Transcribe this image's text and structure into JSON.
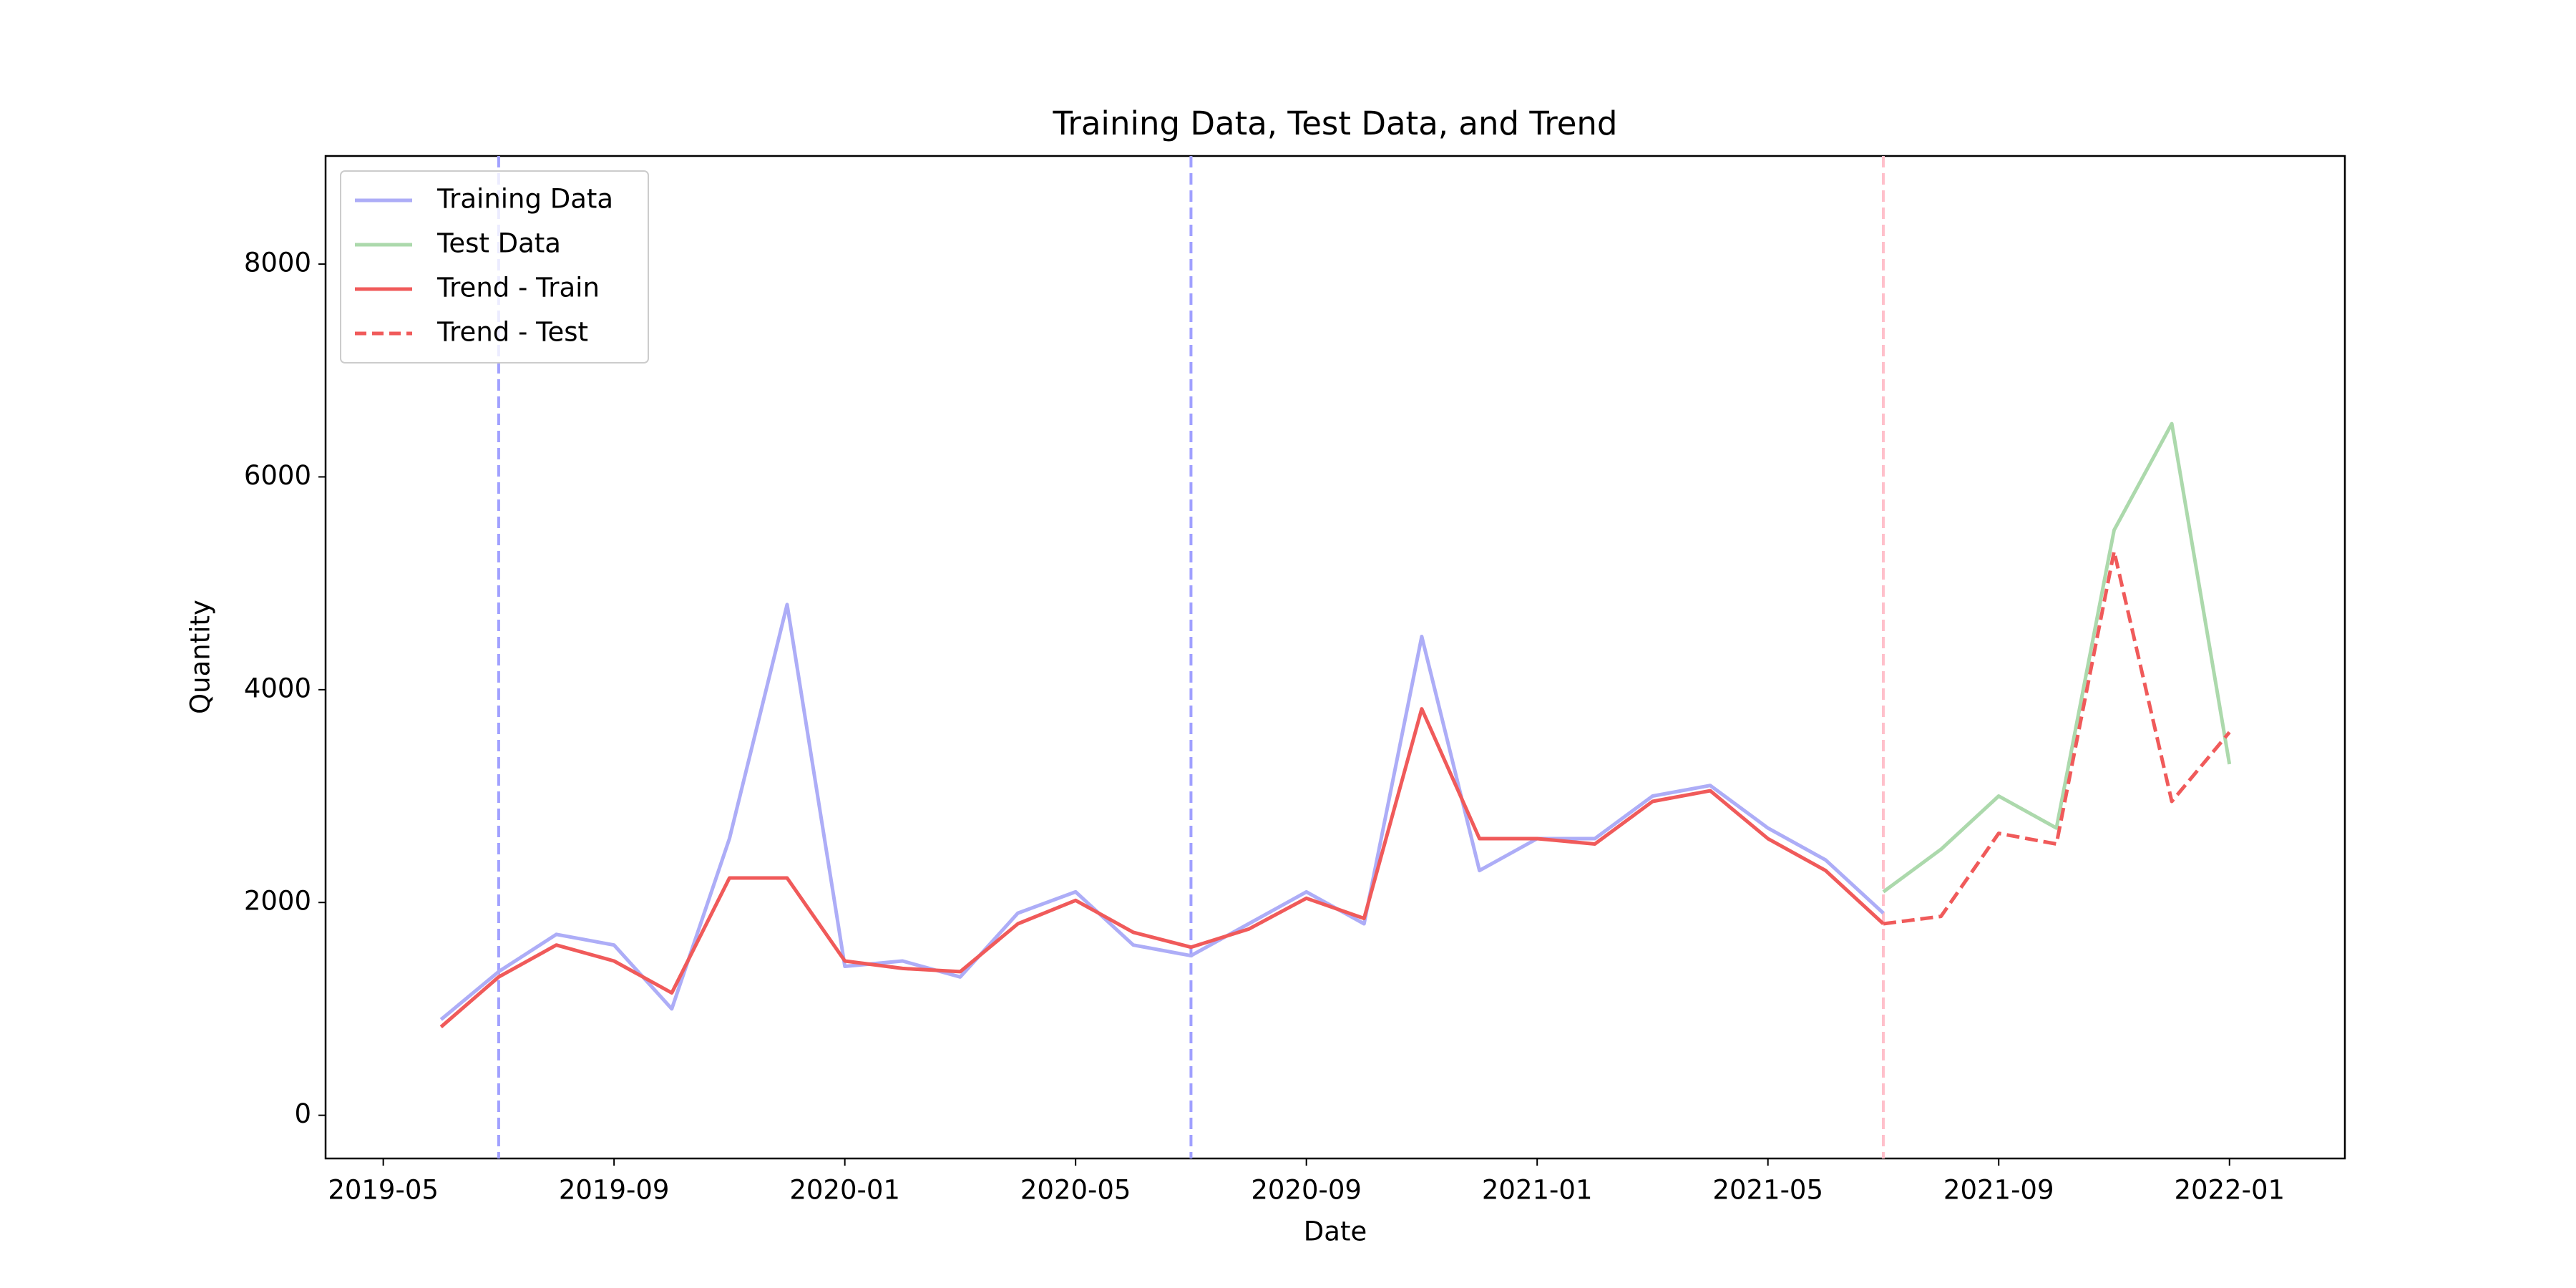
{
  "chart_data": {
    "type": "line",
    "title": "Training Data, Test Data, and Trend",
    "xlabel": "Date",
    "ylabel": "Quantity",
    "xlim": [
      "2019-04",
      "2022-03"
    ],
    "ylim": [
      -406,
      9016
    ],
    "xticks": [
      "2019-05",
      "2019-09",
      "2020-01",
      "2020-05",
      "2020-09",
      "2021-01",
      "2021-05",
      "2021-09",
      "2022-01"
    ],
    "yticks": [
      0,
      2000,
      4000,
      6000,
      8000
    ],
    "legend": "upper left",
    "series": [
      {
        "name": "Training Data",
        "color": "#adadf7",
        "dash": false,
        "x": [
          "2019-06",
          "2019-07",
          "2019-08",
          "2019-09",
          "2019-10",
          "2019-11",
          "2019-12",
          "2020-01",
          "2020-02",
          "2020-03",
          "2020-04",
          "2020-05",
          "2020-06",
          "2020-07",
          "2020-08",
          "2020-09",
          "2020-10",
          "2020-11",
          "2020-12",
          "2021-01",
          "2021-02",
          "2021-03",
          "2021-04",
          "2021-05",
          "2021-06",
          "2021-07"
        ],
        "values": [
          900,
          1350,
          1700,
          1600,
          1000,
          2600,
          4800,
          1400,
          1450,
          1300,
          1900,
          2100,
          1600,
          1500,
          1800,
          2100,
          1800,
          4500,
          2300,
          2600,
          2600,
          3000,
          3100,
          2700,
          2400,
          1900
        ]
      },
      {
        "name": "Test Data",
        "color": "#acd9ac",
        "dash": false,
        "x": [
          "2021-07",
          "2021-08",
          "2021-09",
          "2021-10",
          "2021-11",
          "2021-12",
          "2022-01"
        ],
        "values": [
          2100,
          2500,
          3000,
          2700,
          5500,
          6500,
          3300
        ]
      },
      {
        "name": "Trend - Train",
        "color": "#f05a5a",
        "dash": false,
        "x": [
          "2019-06",
          "2019-07",
          "2019-08",
          "2019-09",
          "2019-10",
          "2019-11",
          "2019-12",
          "2020-01",
          "2020-02",
          "2020-03",
          "2020-04",
          "2020-05",
          "2020-06",
          "2020-07",
          "2020-08",
          "2020-09",
          "2020-10",
          "2020-11",
          "2020-12",
          "2021-01",
          "2021-02",
          "2021-03",
          "2021-04",
          "2021-05",
          "2021-06",
          "2021-07"
        ],
        "values": [
          830,
          1300,
          1600,
          1450,
          1150,
          2230,
          2230,
          1450,
          1380,
          1350,
          1800,
          2020,
          1720,
          1580,
          1750,
          2040,
          1850,
          3820,
          2600,
          2600,
          2550,
          2950,
          3050,
          2600,
          2300,
          1800
        ]
      },
      {
        "name": "Trend - Test",
        "color": "#f05a5a",
        "dash": true,
        "x": [
          "2021-07",
          "2021-08",
          "2021-09",
          "2021-10",
          "2021-11",
          "2021-12",
          "2022-01"
        ],
        "values": [
          1800,
          1870,
          2650,
          2550,
          5300,
          2950,
          3600
        ]
      }
    ],
    "vlines": [
      {
        "x": "2019-07",
        "color": "#a0a0ff"
      },
      {
        "x": "2020-07",
        "color": "#a0a0ff"
      },
      {
        "x": "2021-07",
        "color": "#ffc0cb"
      }
    ]
  }
}
